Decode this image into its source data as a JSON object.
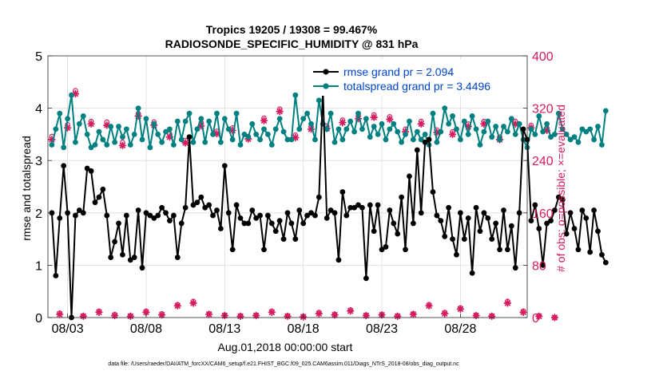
{
  "chart_data": {
    "type": "line",
    "title_line1": "Tropics 19205 / 19308 = 99.467%",
    "title_line2": "RADIOSONDE_SPECIFIC_HUMIDITY @ 831 hPa",
    "ylabel_left": "rmse and totalspread",
    "ylabel_right": "# of obs: o=possible; ×=evaluated",
    "xlabel": "Aug.01,2018 00:00:00 start",
    "footnote": "data file: /Users/raeder/DAI/ATM_forcXX/CAM6_setup/f.e21.FHIST_BGC.f09_025.CAM6assim.011/Diags_NTrS_2018-08/obs_diag_output.nc",
    "x_ticks": [
      {
        "day": 3,
        "label": "08/03"
      },
      {
        "day": 8,
        "label": "08/08"
      },
      {
        "day": 13,
        "label": "08/13"
      },
      {
        "day": 18,
        "label": "08/18"
      },
      {
        "day": 23,
        "label": "08/23"
      },
      {
        "day": 28,
        "label": "08/28"
      }
    ],
    "xlim": [
      1.75,
      32.25
    ],
    "ylim_left": [
      0,
      5
    ],
    "yticks_left": [
      "0",
      "1",
      "2",
      "3",
      "4",
      "5"
    ],
    "ylim_right": [
      0,
      400
    ],
    "yticks_right": [
      "0",
      "80",
      "160",
      "240",
      "320",
      "400"
    ],
    "legend": [
      {
        "label": "rmse grand pr = 2.094",
        "color": "#000000"
      },
      {
        "label": "totalspread grand pr = 3.4496",
        "color": "#008080"
      }
    ],
    "colors": {
      "rmse": "#000000",
      "spread": "#008080",
      "obs": "#d81b60",
      "legend_text": "#0044cc",
      "right_axis": "#d81b60"
    },
    "series": [
      {
        "name": "rmse",
        "axis": "left",
        "x_start": 2,
        "x_step": 0.25,
        "values": [
          2.0,
          0.8,
          1.9,
          2.9,
          2.0,
          0.0,
          1.95,
          2.05,
          2.0,
          2.85,
          2.8,
          2.2,
          2.3,
          2.45,
          1.95,
          1.15,
          1.45,
          1.8,
          1.2,
          1.95,
          1.1,
          1.15,
          2.05,
          0.95,
          2.0,
          1.95,
          1.9,
          1.95,
          2.1,
          2.0,
          1.85,
          1.95,
          1.15,
          1.8,
          2.1,
          3.45,
          2.15,
          2.2,
          2.3,
          2.1,
          2.15,
          1.95,
          2.05,
          1.7,
          2.9,
          2.0,
          1.3,
          2.15,
          1.9,
          1.8,
          1.8,
          2.05,
          1.9,
          1.95,
          1.3,
          1.95,
          1.8,
          1.65,
          1.85,
          1.5,
          2.0,
          1.8,
          1.5,
          2.05,
          1.8,
          1.95,
          2.0,
          1.95,
          2.3,
          4.35,
          1.9,
          2.05,
          2.0,
          1.1,
          2.4,
          1.95,
          2.1,
          2.1,
          2.15,
          2.1,
          0.75,
          2.15,
          1.65,
          2.15,
          1.3,
          1.35,
          2.05,
          1.8,
          1.6,
          2.3,
          1.3,
          2.7,
          1.8,
          3.2,
          2.0,
          3.35,
          3.4,
          2.4,
          1.95,
          1.85,
          1.55,
          2.1,
          1.5,
          1.2,
          2.0,
          1.5,
          1.9,
          0.85,
          2.1,
          1.65,
          2.0,
          1.9,
          1.5,
          1.8,
          1.3,
          2.05,
          1.3,
          1.75,
          0.95,
          2.0,
          3.6,
          3.4,
          1.85,
          2.15,
          1.7,
          1.0,
          1.8,
          1.85,
          2.05,
          2.3,
          2.25,
          1.6,
          2.0,
          1.7,
          1.3,
          2.05,
          1.9,
          1.25,
          2.05,
          1.65,
          1.2,
          1.05
        ]
      },
      {
        "name": "totalspread",
        "axis": "left",
        "x_start": 2,
        "x_step": 0.25,
        "values": [
          3.3,
          3.6,
          3.9,
          3.25,
          3.8,
          4.25,
          3.35,
          3.7,
          3.85,
          3.5,
          3.25,
          3.3,
          3.55,
          3.4,
          3.3,
          3.65,
          3.35,
          3.65,
          3.45,
          3.6,
          3.3,
          3.5,
          4.0,
          3.4,
          3.8,
          3.25,
          3.7,
          3.5,
          3.35,
          3.55,
          3.6,
          3.3,
          3.75,
          3.4,
          3.75,
          3.9,
          3.35,
          3.6,
          3.8,
          3.35,
          3.75,
          3.5,
          3.9,
          3.35,
          3.8,
          3.6,
          3.4,
          3.9,
          3.3,
          3.5,
          3.45,
          3.7,
          3.5,
          3.4,
          3.6,
          3.5,
          3.3,
          3.6,
          3.8,
          3.55,
          3.4,
          3.4,
          4.25,
          3.6,
          3.8,
          3.9,
          3.7,
          3.4,
          4.15,
          3.7,
          3.6,
          3.9,
          3.35,
          3.6,
          3.4,
          3.6,
          3.75,
          3.55,
          3.9,
          3.6,
          3.8,
          3.45,
          3.65,
          3.5,
          3.7,
          3.4,
          3.6,
          3.7,
          3.55,
          3.35,
          3.5,
          3.75,
          3.4,
          3.55,
          3.4,
          3.5,
          3.3,
          3.9,
          3.35,
          3.55,
          4.0,
          3.7,
          3.85,
          3.6,
          3.4,
          3.75,
          3.5,
          3.85,
          3.6,
          3.3,
          3.55,
          3.75,
          3.45,
          3.65,
          3.4,
          3.65,
          3.55,
          3.8,
          3.5,
          3.7,
          3.4,
          3.25,
          3.6,
          3.5,
          3.85,
          3.55,
          3.7,
          3.45,
          3.5,
          3.9,
          3.6,
          3.5,
          3.4,
          3.45,
          3.35,
          3.6,
          3.55,
          3.6,
          3.4,
          3.65,
          3.3,
          3.95
        ]
      },
      {
        "name": "obs_possible",
        "axis": "right",
        "x_start": 2,
        "x_step": 0.5,
        "values": [
          277,
          7,
          295,
          347,
          3,
          300,
          10,
          299,
          5,
          268,
          3,
          312,
          10,
          299,
          6,
          281,
          20,
          271,
          25,
          298,
          6,
          285,
          4,
          290,
          3,
          277,
          4,
          305,
          10,
          319,
          3,
          279,
          2,
          292,
          8,
          293,
          5,
          302,
          12,
          308,
          4,
          310,
          5,
          307,
          3,
          288,
          6,
          300,
          20,
          287,
          8,
          284,
          15,
          296,
          4,
          300,
          3,
          276,
          25,
          300,
          10,
          294,
          3,
          290,
          0
        ]
      },
      {
        "name": "obs_evaluated",
        "axis": "right",
        "x_start": 2,
        "x_step": 0.5,
        "values": [
          272,
          5,
          290,
          342,
          2,
          296,
          8,
          294,
          3,
          263,
          2,
          308,
          8,
          294,
          4,
          276,
          18,
          267,
          22,
          293,
          5,
          281,
          3,
          286,
          2,
          273,
          3,
          301,
          8,
          315,
          2,
          275,
          1,
          288,
          6,
          289,
          4,
          298,
          10,
          304,
          3,
          306,
          4,
          303,
          2,
          284,
          5,
          296,
          18,
          283,
          6,
          280,
          13,
          292,
          3,
          296,
          2,
          272,
          22,
          296,
          8,
          290,
          2,
          286,
          0
        ]
      }
    ]
  }
}
